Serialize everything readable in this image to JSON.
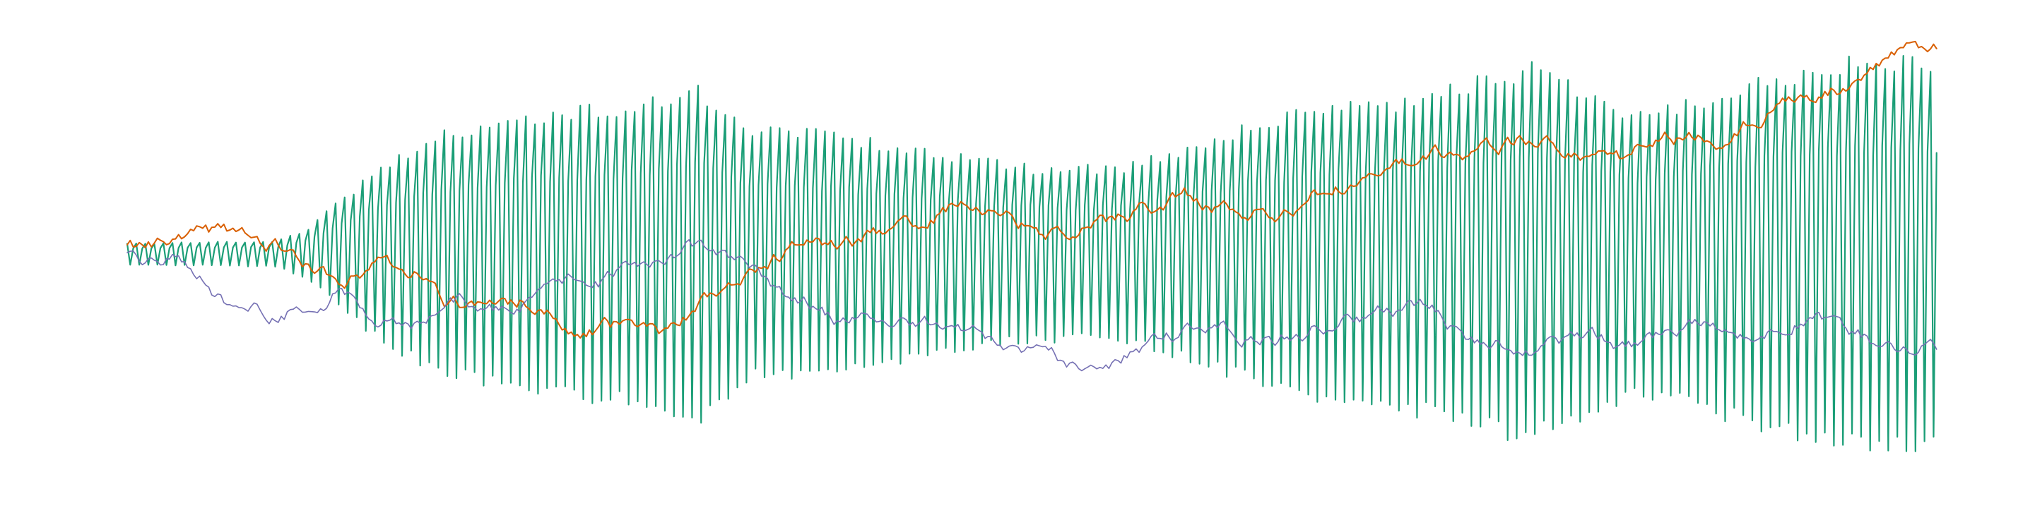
{
  "chart_data": {
    "type": "line",
    "title": "",
    "xlabel": "",
    "ylabel": "",
    "axes_visible": false,
    "grid": false,
    "legend": "none",
    "xlim": [
      0,
      600
    ],
    "ylim": [
      -28,
      28
    ],
    "series": [
      {
        "name": "series-1-oscillating",
        "color": "#1b9e77",
        "stroke_width": 2.2,
        "kind": "oscillation",
        "points": 600,
        "period": 3,
        "center": 0,
        "amplitude_profile": {
          "x": [
            0,
            50,
            60,
            80,
            100,
            130,
            160,
            190,
            205,
            235,
            255,
            280,
            300,
            330,
            365,
            395,
            410,
            440,
            465,
            480,
            500,
            530,
            560,
            600
          ],
          "y": [
            1.2,
            1.5,
            3.0,
            9.0,
            13.5,
            16.0,
            17.0,
            19.0,
            14.5,
            14.0,
            12.5,
            11.0,
            10.0,
            10.0,
            14.0,
            17.5,
            17.0,
            19.5,
            21.5,
            19.0,
            16.0,
            19.0,
            22.0,
            22.5
          ]
        }
      },
      {
        "name": "series-2-rising-walk",
        "color": "#d95f02",
        "stroke_width": 2.0,
        "kind": "random-walk",
        "points": 600,
        "noise": 0.42,
        "anchors": {
          "x": [
            0,
            12,
            25,
            45,
            55,
            62,
            70,
            85,
            95,
            105,
            118,
            130,
            150,
            165,
            178,
            190,
            205,
            220,
            240,
            255,
            275,
            290,
            310,
            330,
            350,
            365,
            380,
            395,
            420,
            440,
            460,
            480,
            495,
            510,
            530,
            550,
            570,
            590,
            600
          ],
          "y": [
            0.5,
            1.0,
            3.0,
            1.2,
            0.2,
            -1.0,
            -3.5,
            -1.0,
            -2.0,
            -5.0,
            -6.5,
            -5.5,
            -9.0,
            -8.5,
            -9.5,
            -6.0,
            -3.0,
            0.5,
            1.5,
            2.5,
            6.0,
            4.0,
            2.0,
            4.0,
            7.0,
            5.0,
            5.0,
            7.5,
            10.0,
            12.0,
            13.0,
            12.5,
            11.0,
            14.0,
            14.0,
            18.0,
            20.0,
            24.0,
            23.5
          ]
        }
      },
      {
        "name": "series-3-falling-walk",
        "color": "#7570b3",
        "stroke_width": 1.6,
        "kind": "random-walk",
        "points": 600,
        "noise": 0.42,
        "anchors": {
          "x": [
            0,
            8,
            15,
            25,
            35,
            50,
            60,
            70,
            80,
            95,
            110,
            125,
            140,
            160,
            175,
            190,
            200,
            215,
            235,
            250,
            275,
            300,
            320,
            340,
            360,
            380,
            400,
            415,
            430,
            445,
            460,
            480,
            500,
            520,
            540,
            560,
            580,
            600
          ],
          "y": [
            -0.5,
            -1.5,
            -0.5,
            -2.5,
            -6.5,
            -7.5,
            -5.5,
            -4.0,
            -7.0,
            -8.0,
            -6.0,
            -6.5,
            -4.0,
            -3.0,
            0.0,
            1.0,
            -1.0,
            -4.0,
            -7.5,
            -8.0,
            -9.0,
            -12.0,
            -14.0,
            -10.0,
            -9.0,
            -9.5,
            -7.5,
            -7.0,
            -5.5,
            -10.0,
            -11.0,
            -10.0,
            -11.0,
            -8.5,
            -9.0,
            -7.0,
            -10.5,
            -11.0
          ]
        }
      }
    ]
  }
}
